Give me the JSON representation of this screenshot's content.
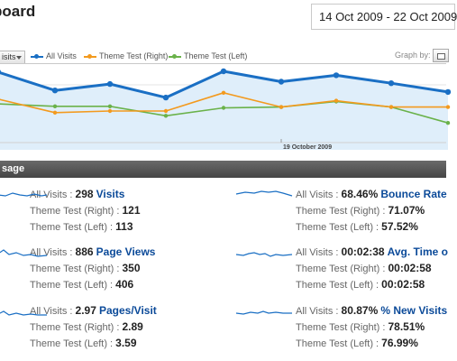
{
  "header": {
    "title": "board",
    "date_range": "14 Oct 2009 - 22 Oct 2009"
  },
  "toolbar": {
    "segment_label": "isits",
    "legend": [
      {
        "name": "All Visits",
        "color": "#1a6fc4"
      },
      {
        "name": "Theme Test (Right)",
        "color": "#f39a1e"
      },
      {
        "name": "Theme Test (Left)",
        "color": "#6ab24a"
      }
    ],
    "graph_by_label": "Graph by:",
    "graph_by_icon": "day-graph-icon"
  },
  "chart_data": {
    "type": "line",
    "x_tick_labels": [
      "19 October 2009"
    ],
    "series": [
      {
        "name": "All Visits",
        "color": "#1a6fc4",
        "values": [
          0.91,
          0.68,
          0.76,
          0.59,
          0.92,
          0.79,
          0.87,
          0.77,
          0.66
        ]
      },
      {
        "name": "Theme Test (Right)",
        "color": "#f39a1e",
        "values": [
          0.57,
          0.4,
          0.42,
          0.42,
          0.65,
          0.47,
          0.55,
          0.47,
          0.47
        ]
      },
      {
        "name": "Theme Test (Left)",
        "color": "#6ab24a",
        "values": [
          0.51,
          0.48,
          0.48,
          0.36,
          0.46,
          0.47,
          0.54,
          0.47,
          0.27
        ]
      }
    ]
  },
  "section": {
    "title": "sage"
  },
  "labels": {
    "all": "All Visits",
    "right": "Theme Test (Right)",
    "left": "Theme Test (Left)",
    "sep": " : "
  },
  "metrics": [
    {
      "name": "Visits",
      "all": "298",
      "right": "121",
      "left": "113",
      "spark_icon": "visits-sparkline"
    },
    {
      "name": "Bounce Rate",
      "all": "68.46%",
      "right": "71.07%",
      "left": "57.52%",
      "spark_icon": "bounce-rate-sparkline"
    },
    {
      "name": "Page Views",
      "all": "886",
      "right": "350",
      "left": "406",
      "spark_icon": "page-views-sparkline"
    },
    {
      "name": "Avg. Time o",
      "all": "00:02:38",
      "right": "00:02:58",
      "left": "00:02:58",
      "spark_icon": "avg-time-sparkline"
    },
    {
      "name": "Pages/Visit",
      "all": "2.97",
      "right": "2.89",
      "left": "3.59",
      "spark_icon": "pages-visit-sparkline"
    },
    {
      "name": "% New Visits",
      "all": "80.87%",
      "right": "78.51%",
      "left": "76.99%",
      "spark_icon": "new-visits-sparkline"
    }
  ]
}
